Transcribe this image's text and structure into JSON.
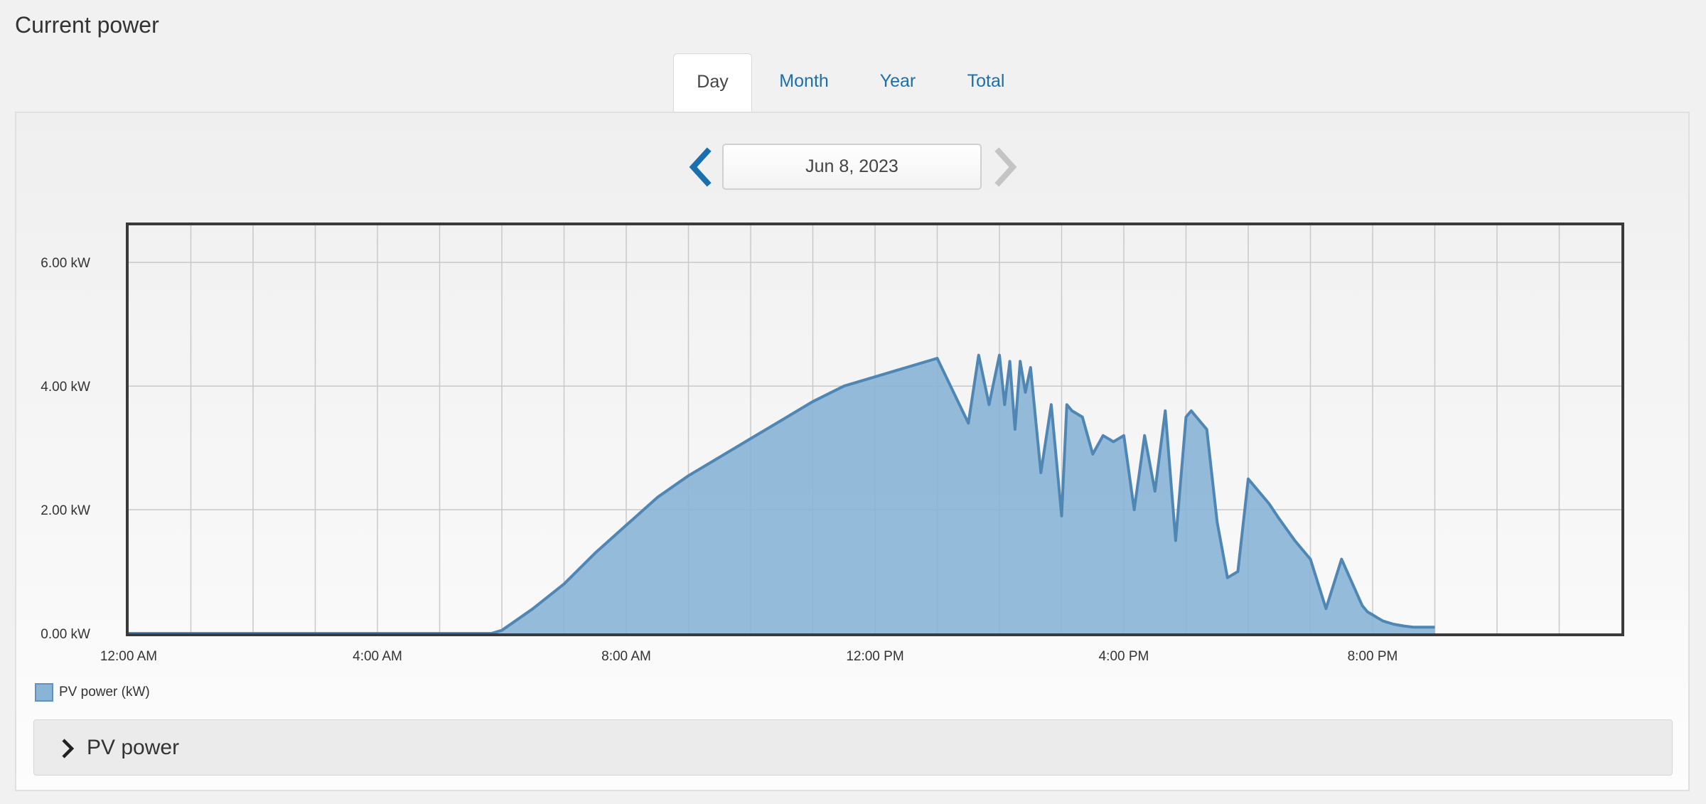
{
  "page": {
    "title": "Current power"
  },
  "tabs": [
    {
      "label": "Day",
      "active": true
    },
    {
      "label": "Month",
      "active": false
    },
    {
      "label": "Year",
      "active": false
    },
    {
      "label": "Total",
      "active": false
    }
  ],
  "date_nav": {
    "date": "Jun 8, 2023",
    "prev_icon": "chevron-left-icon",
    "next_icon": "chevron-right-icon",
    "prev_enabled": true,
    "next_enabled": false
  },
  "legend": {
    "label": "PV power (kW)",
    "color": "#8ab4d6"
  },
  "accordion": {
    "label": "PV power",
    "icon": "chevron-right-icon"
  },
  "colors": {
    "accent": "#1a6fb0",
    "area_fill": "#8ab4d6",
    "area_line": "#4f86b4",
    "disabled": "#c4c4c4"
  },
  "chart_data": {
    "type": "area",
    "grid": true,
    "legend_position": "bottom-left",
    "series": [
      {
        "name": "PV power (kW)",
        "x": [
          "12:00 AM",
          "5:50 AM",
          "6:00 AM",
          "6:30 AM",
          "7:00 AM",
          "7:30 AM",
          "8:00 AM",
          "8:30 AM",
          "9:00 AM",
          "9:30 AM",
          "10:00 AM",
          "10:30 AM",
          "11:00 AM",
          "11:30 AM",
          "12:00 PM",
          "12:30 PM",
          "1:00 PM",
          "1:30 PM",
          "1:40 PM",
          "1:50 PM",
          "2:00 PM",
          "2:05 PM",
          "2:10 PM",
          "2:15 PM",
          "2:20 PM",
          "2:25 PM",
          "2:30 PM",
          "2:40 PM",
          "2:50 PM",
          "3:00 PM",
          "3:05 PM",
          "3:10 PM",
          "3:20 PM",
          "3:30 PM",
          "3:40 PM",
          "3:50 PM",
          "4:00 PM",
          "4:10 PM",
          "4:20 PM",
          "4:30 PM",
          "4:40 PM",
          "4:50 PM",
          "5:00 PM",
          "5:05 PM",
          "5:10 PM",
          "5:20 PM",
          "5:30 PM",
          "5:40 PM",
          "5:50 PM",
          "6:00 PM",
          "6:10 PM",
          "6:20 PM",
          "6:30 PM",
          "6:45 PM",
          "7:00 PM",
          "7:15 PM",
          "7:30 PM",
          "7:50 PM",
          "7:55 PM",
          "8:00 PM",
          "8:05 PM",
          "8:10 PM",
          "8:20 PM",
          "8:30 PM",
          "8:40 PM",
          "9:00 PM"
        ],
        "values": [
          0.0,
          0.0,
          0.05,
          0.4,
          0.8,
          1.3,
          1.75,
          2.2,
          2.55,
          2.85,
          3.15,
          3.45,
          3.75,
          4.0,
          4.15,
          4.3,
          4.45,
          3.4,
          4.5,
          3.7,
          4.5,
          3.7,
          4.4,
          3.3,
          4.4,
          3.9,
          4.3,
          2.6,
          3.7,
          1.9,
          3.7,
          3.6,
          3.5,
          2.9,
          3.2,
          3.1,
          3.2,
          2.0,
          3.2,
          2.3,
          3.6,
          1.5,
          3.5,
          3.6,
          3.5,
          3.3,
          1.8,
          0.9,
          1.0,
          2.5,
          2.3,
          2.1,
          1.85,
          1.5,
          1.2,
          0.4,
          1.2,
          0.45,
          0.35,
          0.3,
          0.25,
          0.2,
          0.15,
          0.12,
          0.1,
          0.1
        ]
      }
    ],
    "x_range": [
      "12:00 AM",
      "12:00 AM"
    ],
    "ylim": [
      0,
      6.6
    ],
    "y_ticks": [
      {
        "value": 0,
        "label": "0.00 kW"
      },
      {
        "value": 2,
        "label": "2.00 kW"
      },
      {
        "value": 4,
        "label": "4.00 kW"
      },
      {
        "value": 6,
        "label": "6.00 kW"
      }
    ],
    "x_ticks": [
      {
        "hour": 0,
        "label": "12:00 AM"
      },
      {
        "hour": 4,
        "label": "4:00 AM"
      },
      {
        "hour": 8,
        "label": "8:00 AM"
      },
      {
        "hour": 12,
        "label": "12:00 PM"
      },
      {
        "hour": 16,
        "label": "4:00 PM"
      },
      {
        "hour": 20,
        "label": "8:00 PM"
      }
    ]
  }
}
